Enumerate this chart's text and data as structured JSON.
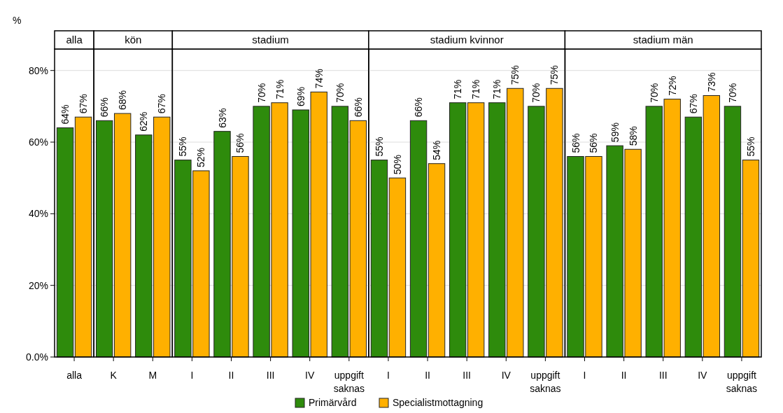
{
  "chart_data": [
    {
      "type": "bar",
      "title": "alla",
      "ylabel": "%",
      "categories": [
        "alla"
      ],
      "ylim": [
        0,
        86
      ],
      "yticks": [
        {
          "value": 0,
          "label": "0.0%"
        },
        {
          "value": 20,
          "label": "20%"
        },
        {
          "value": 40,
          "label": "40%"
        },
        {
          "value": 60,
          "label": "60%"
        },
        {
          "value": 80,
          "label": "80%"
        }
      ],
      "grid": "y",
      "legend": "bottom",
      "series": [
        {
          "name": "Primärvård",
          "color": "#2e8b0c",
          "values": [
            64
          ],
          "value_labels": [
            "64%"
          ]
        },
        {
          "name": "Specialistmottagning",
          "color": "#ffb000",
          "values": [
            67
          ],
          "value_labels": [
            "67%"
          ]
        }
      ]
    },
    {
      "type": "bar",
      "title": "kön",
      "categories": [
        "K",
        "M"
      ],
      "ylim": [
        0,
        86
      ],
      "yticks": [
        0,
        20,
        40,
        60,
        80
      ],
      "grid": "y",
      "tick_labels": "x",
      "series": [
        {
          "color": "#2e8b0c",
          "values": [
            66,
            62
          ],
          "value_labels": [
            "66%",
            "62%"
          ]
        },
        {
          "color": "#ffb000",
          "values": [
            68,
            67
          ],
          "value_labels": [
            "68%",
            "67%"
          ]
        }
      ]
    },
    {
      "type": "bar",
      "title": "stadium",
      "categories": [
        "I",
        "II",
        "III",
        "IV",
        "uppgift saknas"
      ],
      "ylim": [
        0,
        86
      ],
      "yticks": [
        0,
        20,
        40,
        60,
        80
      ],
      "grid": "y",
      "tick_labels": "x",
      "series": [
        {
          "color": "#2e8b0c",
          "values": [
            55,
            63,
            70,
            69,
            70
          ],
          "value_labels": [
            "55%",
            "63%",
            "70%",
            "69%",
            "70%"
          ]
        },
        {
          "color": "#ffb000",
          "values": [
            52,
            56,
            71,
            74,
            66
          ],
          "value_labels": [
            "52%",
            "56%",
            "71%",
            "74%",
            "66%"
          ]
        }
      ]
    },
    {
      "type": "bar",
      "title": "stadium kvinnor",
      "categories": [
        "I",
        "II",
        "III",
        "IV",
        "uppgift saknas"
      ],
      "ylim": [
        0,
        86
      ],
      "yticks": [
        0,
        20,
        40,
        60,
        80
      ],
      "grid": "y",
      "tick_labels": "x",
      "series": [
        {
          "color": "#2e8b0c",
          "values": [
            55,
            66,
            71,
            71,
            70
          ],
          "value_labels": [
            "55%",
            "66%",
            "71%",
            "71%",
            "70%"
          ]
        },
        {
          "color": "#ffb000",
          "values": [
            50,
            54,
            71,
            75,
            75
          ],
          "value_labels": [
            "50%",
            "54%",
            "71%",
            "75%",
            "75%"
          ]
        }
      ]
    },
    {
      "type": "bar",
      "title": "stadium män",
      "categories": [
        "I",
        "II",
        "III",
        "IV",
        "uppgift saknas"
      ],
      "ylim": [
        0,
        86
      ],
      "yticks": [
        0,
        20,
        40,
        60,
        80
      ],
      "grid": "y",
      "tick_labels": "x",
      "series": [
        {
          "color": "#2e8b0c",
          "values": [
            56,
            59,
            70,
            67,
            70
          ],
          "value_labels": [
            "56%",
            "59%",
            "70%",
            "67%",
            "70%"
          ]
        },
        {
          "color": "#ffb000",
          "values": [
            56,
            58,
            72,
            73,
            55
          ],
          "value_labels": [
            "56%",
            "58%",
            "72%",
            "73%",
            "55%"
          ]
        }
      ]
    }
  ]
}
